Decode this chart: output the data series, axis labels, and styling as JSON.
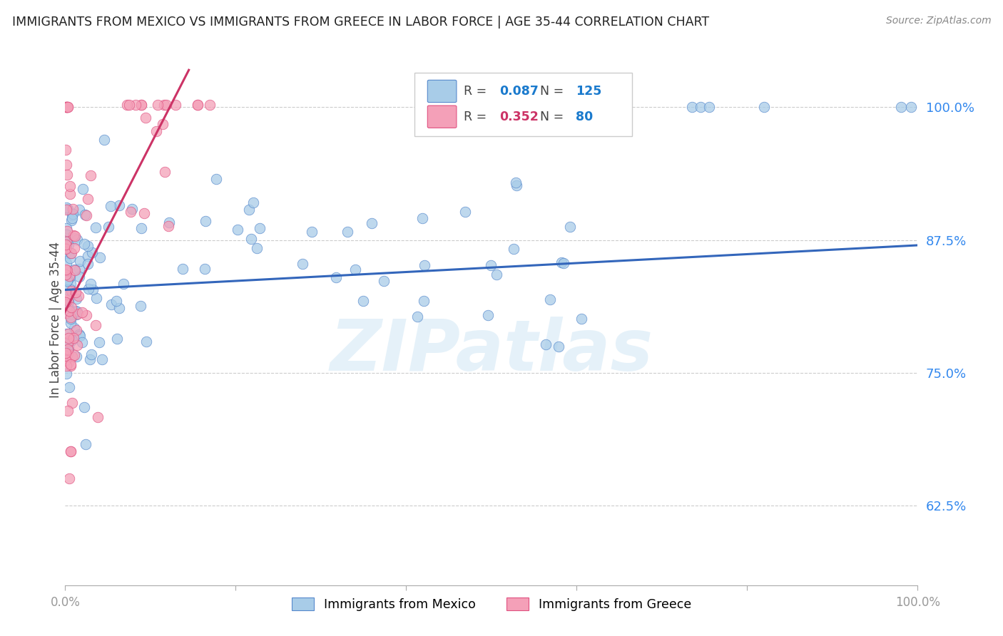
{
  "title": "IMMIGRANTS FROM MEXICO VS IMMIGRANTS FROM GREECE IN LABOR FORCE | AGE 35-44 CORRELATION CHART",
  "source": "Source: ZipAtlas.com",
  "ylabel": "In Labor Force | Age 35-44",
  "ytick_labels": [
    "62.5%",
    "75.0%",
    "87.5%",
    "100.0%"
  ],
  "ytick_values": [
    0.625,
    0.75,
    0.875,
    1.0
  ],
  "legend_entries": [
    {
      "label": "Immigrants from Mexico",
      "R": "0.087",
      "N": "125",
      "color": "#a8cce8"
    },
    {
      "label": "Immigrants from Greece",
      "R": "0.352",
      "N": "80",
      "color": "#f4a0b8"
    }
  ],
  "blue_color": "#a8cce8",
  "pink_color": "#f4a0b8",
  "blue_edge_color": "#5588cc",
  "pink_edge_color": "#e05080",
  "blue_line_color": "#3366bb",
  "pink_line_color": "#cc3366",
  "legend_R_color_blue": "#1a7acd",
  "legend_N_color_blue": "#1a7acd",
  "legend_R_color_pink": "#cc3366",
  "legend_N_color_pink": "#1a7acd",
  "ytick_color": "#3388ee",
  "xtick_color": "#999999",
  "watermark": "ZIPatlas",
  "blue_trend_x0": 0.0,
  "blue_trend_x1": 1.0,
  "blue_trend_y0": 0.828,
  "blue_trend_y1": 0.87,
  "pink_trend_x0": -0.005,
  "pink_trend_x1": 0.145,
  "pink_trend_y0": 0.8,
  "pink_trend_y1": 1.035,
  "xlim": [
    0.0,
    1.0
  ],
  "ylim": [
    0.55,
    1.05
  ],
  "background_color": "#ffffff",
  "grid_color": "#cccccc",
  "grid_style": "--"
}
